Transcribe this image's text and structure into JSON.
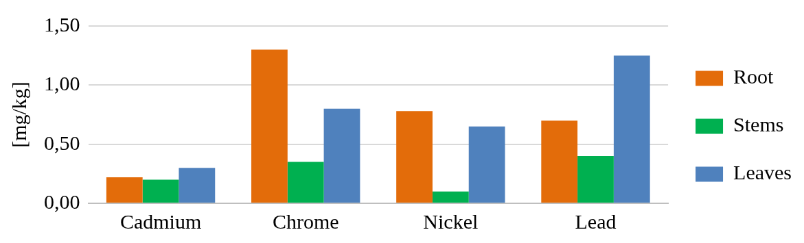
{
  "chart_data": {
    "type": "bar",
    "ylabel": "[mg/kg]",
    "categories": [
      "Cadmium",
      "Chrome",
      "Nickel",
      "Lead"
    ],
    "series": [
      {
        "name": "Root",
        "color": "#e36c0a",
        "values": [
          0.22,
          1.3,
          0.78,
          0.7
        ]
      },
      {
        "name": "Stems",
        "color": "#00b050",
        "values": [
          0.2,
          0.35,
          0.1,
          0.4
        ]
      },
      {
        "name": "Leaves",
        "color": "#4f81bd",
        "values": [
          0.3,
          0.8,
          0.65,
          1.25
        ]
      }
    ],
    "ylim": [
      0,
      1.5
    ],
    "yticks": [
      {
        "value": 0,
        "label": "0,00"
      },
      {
        "value": 0.5,
        "label": "0,50"
      },
      {
        "value": 1,
        "label": "1,00"
      },
      {
        "value": 1.5,
        "label": "1,50"
      }
    ],
    "grid": "y",
    "legend": "right"
  }
}
